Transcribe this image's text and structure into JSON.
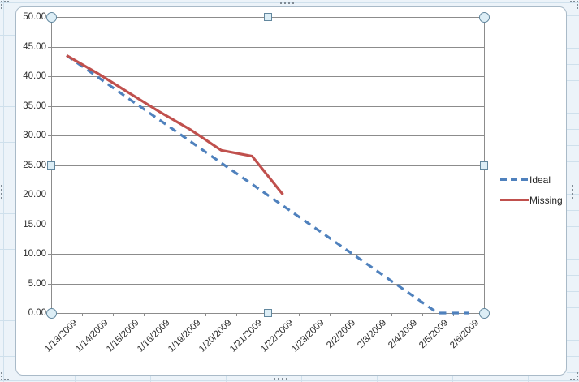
{
  "chart_data": {
    "type": "line",
    "title": "",
    "xlabel": "",
    "ylabel": "",
    "categories": [
      "1/13/2009",
      "1/14/2009",
      "1/15/2009",
      "1/16/2009",
      "1/19/2009",
      "1/20/2009",
      "1/21/2009",
      "1/22/2009",
      "1/23/2009",
      "2/2/2009",
      "2/3/2009",
      "2/4/2009",
      "2/5/2009",
      "2/6/2009"
    ],
    "series": [
      {
        "name": "Ideal",
        "color": "#4F81BD",
        "style": "dashed",
        "values": [
          43.5,
          39.875,
          36.25,
          32.625,
          29,
          25.375,
          21.75,
          18.125,
          14.5,
          10.875,
          7.25,
          3.625,
          0,
          0
        ]
      },
      {
        "name": "Missing",
        "color": "#C0504D",
        "style": "solid",
        "values": [
          43.5,
          40.5,
          37.25,
          34,
          31,
          27.5,
          26.5,
          20,
          null,
          null,
          null,
          null,
          null,
          null
        ]
      }
    ],
    "ylim": [
      0,
      50
    ],
    "ytick_step": 5,
    "ytick_format": "0.00",
    "grid": true,
    "legend_position": "right",
    "axis_color": "#8c8c8c",
    "tick_label_color": "#2e2e2e"
  },
  "legend": {
    "items": [
      {
        "label": "Ideal"
      },
      {
        "label": "Missing"
      }
    ]
  },
  "selection": {
    "state": "plot-area-selected",
    "handle_fill": "#ddeef6",
    "handle_border": "#62879e"
  }
}
